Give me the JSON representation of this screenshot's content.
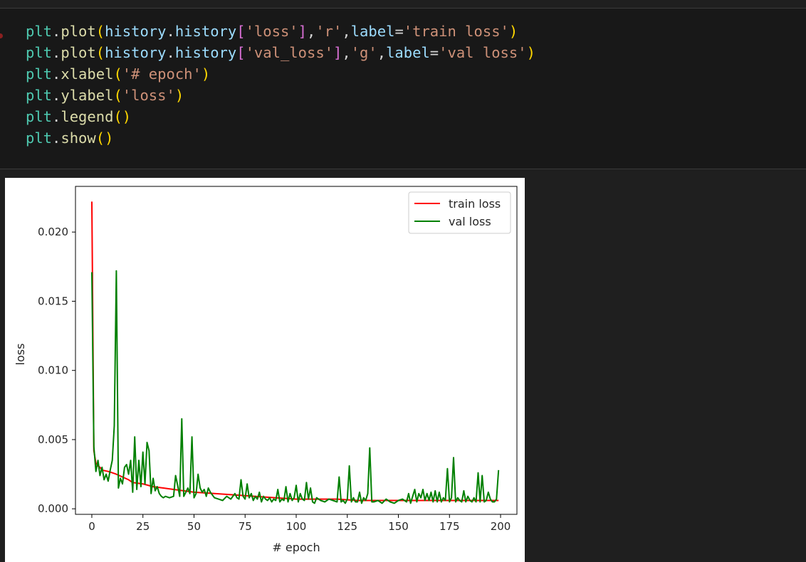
{
  "code_cell": {
    "lines": [
      [
        {
          "t": "plt",
          "c": "tok-var"
        },
        {
          "t": ".",
          "c": "tok-op"
        },
        {
          "t": "plot",
          "c": "tok-fn"
        },
        {
          "t": "(",
          "c": "tok-p1"
        },
        {
          "t": "history",
          "c": "tok-id"
        },
        {
          "t": ".",
          "c": "tok-op"
        },
        {
          "t": "history",
          "c": "tok-id"
        },
        {
          "t": "[",
          "c": "tok-p2"
        },
        {
          "t": "'loss'",
          "c": "tok-str"
        },
        {
          "t": "]",
          "c": "tok-p2"
        },
        {
          "t": ",",
          "c": "tok-op"
        },
        {
          "t": "'r'",
          "c": "tok-str"
        },
        {
          "t": ",",
          "c": "tok-op"
        },
        {
          "t": "label",
          "c": "tok-id"
        },
        {
          "t": "=",
          "c": "tok-op"
        },
        {
          "t": "'train loss'",
          "c": "tok-str"
        },
        {
          "t": ")",
          "c": "tok-p1"
        }
      ],
      [
        {
          "t": "plt",
          "c": "tok-var"
        },
        {
          "t": ".",
          "c": "tok-op"
        },
        {
          "t": "plot",
          "c": "tok-fn"
        },
        {
          "t": "(",
          "c": "tok-p1"
        },
        {
          "t": "history",
          "c": "tok-id"
        },
        {
          "t": ".",
          "c": "tok-op"
        },
        {
          "t": "history",
          "c": "tok-id"
        },
        {
          "t": "[",
          "c": "tok-p2"
        },
        {
          "t": "'val_loss'",
          "c": "tok-str"
        },
        {
          "t": "]",
          "c": "tok-p2"
        },
        {
          "t": ",",
          "c": "tok-op"
        },
        {
          "t": "'g'",
          "c": "tok-str"
        },
        {
          "t": ",",
          "c": "tok-op"
        },
        {
          "t": "label",
          "c": "tok-id"
        },
        {
          "t": "=",
          "c": "tok-op"
        },
        {
          "t": "'val loss'",
          "c": "tok-str"
        },
        {
          "t": ")",
          "c": "tok-p1"
        }
      ],
      [
        {
          "t": "plt",
          "c": "tok-var"
        },
        {
          "t": ".",
          "c": "tok-op"
        },
        {
          "t": "xlabel",
          "c": "tok-fn"
        },
        {
          "t": "(",
          "c": "tok-p1"
        },
        {
          "t": "'# epoch'",
          "c": "tok-str"
        },
        {
          "t": ")",
          "c": "tok-p1"
        }
      ],
      [
        {
          "t": "plt",
          "c": "tok-var"
        },
        {
          "t": ".",
          "c": "tok-op"
        },
        {
          "t": "ylabel",
          "c": "tok-fn"
        },
        {
          "t": "(",
          "c": "tok-p1"
        },
        {
          "t": "'loss'",
          "c": "tok-str"
        },
        {
          "t": ")",
          "c": "tok-p1"
        }
      ],
      [
        {
          "t": "plt",
          "c": "tok-var"
        },
        {
          "t": ".",
          "c": "tok-op"
        },
        {
          "t": "legend",
          "c": "tok-fn"
        },
        {
          "t": "()",
          "c": "tok-p1"
        }
      ],
      [
        {
          "t": "plt",
          "c": "tok-var"
        },
        {
          "t": ".",
          "c": "tok-op"
        },
        {
          "t": "show",
          "c": "tok-fn"
        },
        {
          "t": "()",
          "c": "tok-p1"
        }
      ]
    ]
  },
  "colors": {
    "train": "#ff0000",
    "val": "#008000",
    "editor_bg": "#181818"
  },
  "chart_data": {
    "type": "line",
    "xlabel": "# epoch",
    "ylabel": "loss",
    "xlim": [
      -8,
      208
    ],
    "ylim": [
      -0.0004,
      0.0233
    ],
    "xticks": [
      0,
      25,
      50,
      75,
      100,
      125,
      150,
      175,
      200
    ],
    "xtick_labels": [
      "0",
      "25",
      "50",
      "75",
      "100",
      "125",
      "150",
      "175",
      "200"
    ],
    "yticks": [
      0.0,
      0.005,
      0.01,
      0.015,
      0.02
    ],
    "ytick_labels": [
      "0.000",
      "0.005",
      "0.010",
      "0.015",
      "0.020"
    ],
    "legend": "upper right",
    "series": [
      {
        "name": "train loss",
        "color_key": "train",
        "points": [
          [
            0,
            0.0222
          ],
          [
            1,
            0.0042
          ],
          [
            2,
            0.0033
          ],
          [
            3,
            0.0031
          ],
          [
            4,
            0.003
          ],
          [
            5,
            0.0028
          ],
          [
            8,
            0.0027
          ],
          [
            10,
            0.0026
          ],
          [
            12,
            0.0025
          ],
          [
            15,
            0.0023
          ],
          [
            18,
            0.0021
          ],
          [
            20,
            0.0019
          ],
          [
            25,
            0.0018
          ],
          [
            30,
            0.0016
          ],
          [
            35,
            0.0015
          ],
          [
            40,
            0.0014
          ],
          [
            45,
            0.0013
          ],
          [
            50,
            0.0012
          ],
          [
            60,
            0.0011
          ],
          [
            70,
            0.001
          ],
          [
            80,
            0.0009
          ],
          [
            90,
            0.0008
          ],
          [
            100,
            0.0007
          ],
          [
            110,
            0.0007
          ],
          [
            120,
            0.0007
          ],
          [
            130,
            0.0006
          ],
          [
            140,
            0.0006
          ],
          [
            150,
            0.0006
          ],
          [
            160,
            0.0006
          ],
          [
            170,
            0.0006
          ],
          [
            180,
            0.0006
          ],
          [
            190,
            0.0006
          ],
          [
            199,
            0.0006
          ]
        ]
      },
      {
        "name": "val loss",
        "color_key": "val",
        "points": [
          [
            0,
            0.0171
          ],
          [
            1,
            0.0045
          ],
          [
            2,
            0.0027
          ],
          [
            3,
            0.0035
          ],
          [
            4,
            0.0024
          ],
          [
            5,
            0.003
          ],
          [
            6,
            0.0021
          ],
          [
            7,
            0.0025
          ],
          [
            8,
            0.002
          ],
          [
            9,
            0.0028
          ],
          [
            10,
            0.0035
          ],
          [
            11,
            0.006
          ],
          [
            12,
            0.0172
          ],
          [
            13,
            0.0015
          ],
          [
            14,
            0.0022
          ],
          [
            15,
            0.0018
          ],
          [
            16,
            0.003
          ],
          [
            17,
            0.0032
          ],
          [
            18,
            0.0025
          ],
          [
            19,
            0.0035
          ],
          [
            20,
            0.0012
          ],
          [
            21,
            0.0052
          ],
          [
            22,
            0.0014
          ],
          [
            23,
            0.0035
          ],
          [
            24,
            0.0016
          ],
          [
            25,
            0.0041
          ],
          [
            26,
            0.0018
          ],
          [
            27,
            0.0048
          ],
          [
            28,
            0.0042
          ],
          [
            29,
            0.0011
          ],
          [
            30,
            0.0022
          ],
          [
            31,
            0.0013
          ],
          [
            32,
            0.0016
          ],
          [
            33,
            0.0011
          ],
          [
            34,
            0.0009
          ],
          [
            35,
            0.0008
          ],
          [
            36,
            0.0009
          ],
          [
            38,
            0.0008
          ],
          [
            40,
            0.0009
          ],
          [
            41,
            0.0024
          ],
          [
            42,
            0.0017
          ],
          [
            43,
            0.0009
          ],
          [
            44,
            0.0065
          ],
          [
            45,
            0.0009
          ],
          [
            46,
            0.0012
          ],
          [
            47,
            0.0015
          ],
          [
            48,
            0.0011
          ],
          [
            49,
            0.0052
          ],
          [
            50,
            0.0008
          ],
          [
            51,
            0.0011
          ],
          [
            52,
            0.0025
          ],
          [
            53,
            0.0015
          ],
          [
            54,
            0.0012
          ],
          [
            55,
            0.0014
          ],
          [
            56,
            0.0009
          ],
          [
            57,
            0.0015
          ],
          [
            58,
            0.0012
          ],
          [
            59,
            0.001
          ],
          [
            60,
            0.0008
          ],
          [
            62,
            0.0007
          ],
          [
            64,
            0.0006
          ],
          [
            66,
            0.0009
          ],
          [
            68,
            0.0007
          ],
          [
            70,
            0.0011
          ],
          [
            71,
            0.0008
          ],
          [
            72,
            0.0007
          ],
          [
            73,
            0.0021
          ],
          [
            74,
            0.0009
          ],
          [
            75,
            0.0007
          ],
          [
            76,
            0.0018
          ],
          [
            77,
            0.0008
          ],
          [
            78,
            0.0011
          ],
          [
            79,
            0.0006
          ],
          [
            80,
            0.0009
          ],
          [
            81,
            0.0007
          ],
          [
            82,
            0.0012
          ],
          [
            83,
            0.0005
          ],
          [
            84,
            0.0009
          ],
          [
            85,
            0.0007
          ],
          [
            86,
            0.0006
          ],
          [
            87,
            0.0008
          ],
          [
            88,
            0.0005
          ],
          [
            89,
            0.0007
          ],
          [
            90,
            0.0006
          ],
          [
            91,
            0.0014
          ],
          [
            92,
            0.0005
          ],
          [
            93,
            0.0007
          ],
          [
            94,
            0.0006
          ],
          [
            95,
            0.0016
          ],
          [
            96,
            0.0005
          ],
          [
            97,
            0.0011
          ],
          [
            98,
            0.0006
          ],
          [
            99,
            0.0008
          ],
          [
            100,
            0.0017
          ],
          [
            101,
            0.0005
          ],
          [
            102,
            0.0011
          ],
          [
            103,
            0.0007
          ],
          [
            104,
            0.0006
          ],
          [
            105,
            0.0019
          ],
          [
            106,
            0.0007
          ],
          [
            107,
            0.0015
          ],
          [
            108,
            0.0005
          ],
          [
            109,
            0.0004
          ],
          [
            110,
            0.0008
          ],
          [
            112,
            0.0006
          ],
          [
            114,
            0.0005
          ],
          [
            116,
            0.0007
          ],
          [
            118,
            0.0006
          ],
          [
            120,
            0.0005
          ],
          [
            121,
            0.0023
          ],
          [
            122,
            0.0005
          ],
          [
            123,
            0.0006
          ],
          [
            124,
            0.0004
          ],
          [
            125,
            0.0007
          ],
          [
            126,
            0.0031
          ],
          [
            127,
            0.0005
          ],
          [
            128,
            0.0008
          ],
          [
            129,
            0.0005
          ],
          [
            130,
            0.0005
          ],
          [
            131,
            0.0012
          ],
          [
            132,
            0.0004
          ],
          [
            133,
            0.0008
          ],
          [
            134,
            0.0006
          ],
          [
            135,
            0.0011
          ],
          [
            136,
            0.0044
          ],
          [
            137,
            0.0005
          ],
          [
            138,
            0.0005
          ],
          [
            140,
            0.0006
          ],
          [
            142,
            0.0004
          ],
          [
            144,
            0.0007
          ],
          [
            146,
            0.0005
          ],
          [
            148,
            0.0004
          ],
          [
            150,
            0.0006
          ],
          [
            152,
            0.0007
          ],
          [
            154,
            0.0005
          ],
          [
            155,
            0.0011
          ],
          [
            156,
            0.0004
          ],
          [
            157,
            0.0009
          ],
          [
            158,
            0.0014
          ],
          [
            159,
            0.0005
          ],
          [
            160,
            0.0011
          ],
          [
            161,
            0.0008
          ],
          [
            162,
            0.0014
          ],
          [
            163,
            0.0006
          ],
          [
            164,
            0.0011
          ],
          [
            165,
            0.0006
          ],
          [
            166,
            0.0012
          ],
          [
            167,
            0.0005
          ],
          [
            168,
            0.0013
          ],
          [
            169,
            0.0005
          ],
          [
            170,
            0.0012
          ],
          [
            171,
            0.0005
          ],
          [
            172,
            0.0008
          ],
          [
            173,
            0.0006
          ],
          [
            174,
            0.0029
          ],
          [
            175,
            0.0005
          ],
          [
            176,
            0.0008
          ],
          [
            177,
            0.0037
          ],
          [
            178,
            0.0005
          ],
          [
            179,
            0.0008
          ],
          [
            180,
            0.0006
          ],
          [
            181,
            0.0005
          ],
          [
            182,
            0.0013
          ],
          [
            183,
            0.0005
          ],
          [
            184,
            0.0009
          ],
          [
            185,
            0.0006
          ],
          [
            186,
            0.0005
          ],
          [
            187,
            0.0008
          ],
          [
            188,
            0.0005
          ],
          [
            189,
            0.0026
          ],
          [
            190,
            0.0005
          ],
          [
            191,
            0.0024
          ],
          [
            192,
            0.0005
          ],
          [
            193,
            0.0006
          ],
          [
            194,
            0.0012
          ],
          [
            195,
            0.0007
          ],
          [
            196,
            0.0005
          ],
          [
            197,
            0.0005
          ],
          [
            198,
            0.0007
          ],
          [
            199,
            0.0028
          ]
        ]
      }
    ]
  }
}
